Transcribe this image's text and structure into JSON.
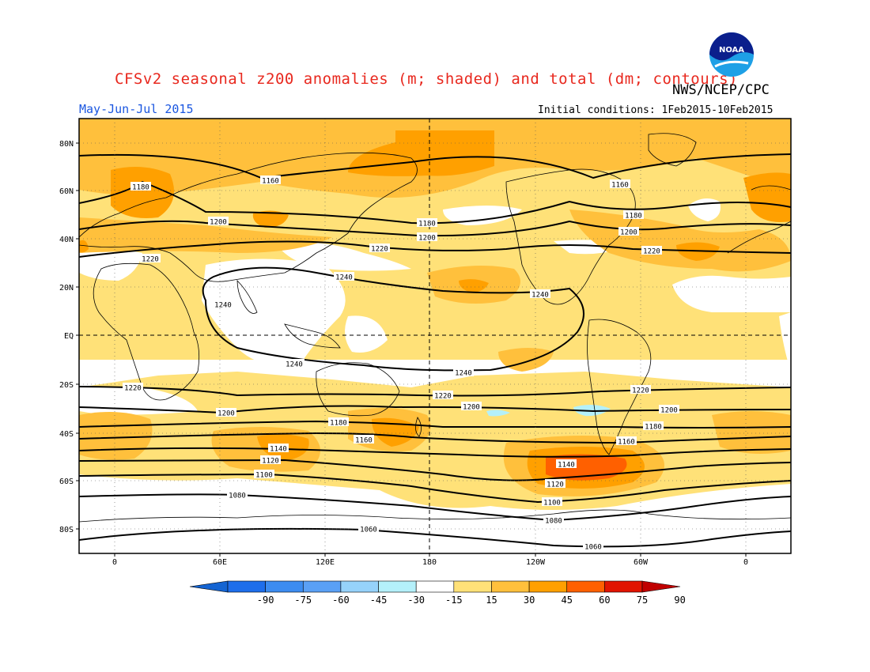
{
  "header": {
    "title": "CFSv2 seasonal z200 anomalies (m; shaded) and total (dm; contours)",
    "agency": "NWS/NCEP/CPC",
    "period": "May-Jun-Jul 2015",
    "initial_conditions": "Initial conditions: 1Feb2015-10Feb2015",
    "logo_text": "NOAA"
  },
  "map": {
    "lat_labels": [
      "80N",
      "60N",
      "40N",
      "20N",
      "EQ",
      "20S",
      "40S",
      "60S",
      "80S"
    ],
    "lon_labels": [
      "0",
      "60E",
      "120E",
      "180",
      "120W",
      "60W",
      "0"
    ],
    "contour_labels": [
      {
        "text": "1180"
      },
      {
        "text": "1160"
      },
      {
        "text": "1160"
      },
      {
        "text": "1180"
      },
      {
        "text": "1200"
      },
      {
        "text": "1180"
      },
      {
        "text": "1200"
      },
      {
        "text": "1200"
      },
      {
        "text": "1220"
      },
      {
        "text": "1220"
      },
      {
        "text": "1220"
      },
      {
        "text": "1240"
      },
      {
        "text": "1240"
      },
      {
        "text": "1240"
      },
      {
        "text": "1240"
      },
      {
        "text": "1240"
      },
      {
        "text": "1220"
      },
      {
        "text": "1220"
      },
      {
        "text": "1220"
      },
      {
        "text": "1200"
      },
      {
        "text": "1200"
      },
      {
        "text": "1200"
      },
      {
        "text": "1180"
      },
      {
        "text": "1180"
      },
      {
        "text": "1160"
      },
      {
        "text": "1160"
      },
      {
        "text": "1140"
      },
      {
        "text": "1140"
      },
      {
        "text": "1120"
      },
      {
        "text": "1120"
      },
      {
        "text": "1100"
      },
      {
        "text": "1100"
      },
      {
        "text": "1080"
      },
      {
        "text": "1080"
      },
      {
        "text": "1060"
      },
      {
        "text": "1060"
      }
    ]
  },
  "colorbar": {
    "labels": [
      "-90",
      "-75",
      "-60",
      "-45",
      "-30",
      "-15",
      "15",
      "30",
      "45",
      "60",
      "75",
      "90"
    ],
    "colors": [
      "#1464d2",
      "#1e6eeb",
      "#3c8cf0",
      "#5aa0f5",
      "#96d2fa",
      "#b4f0fa",
      "#ffffff",
      "#ffe178",
      "#ffc03c",
      "#ffa000",
      "#ff6000",
      "#e11400",
      "#c00000"
    ]
  }
}
